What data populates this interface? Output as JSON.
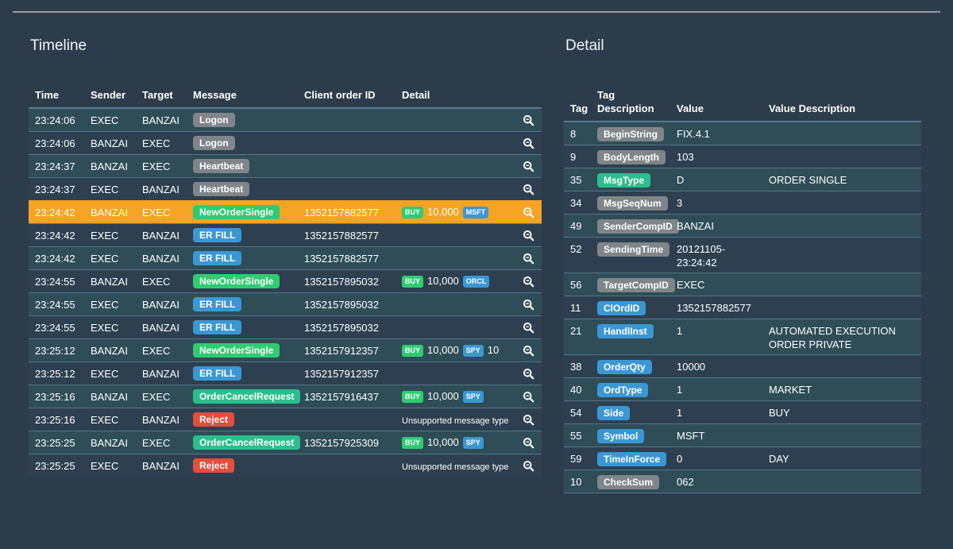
{
  "icons": {
    "row_detail": "magnifier-icon"
  },
  "colors": {
    "page_bg": "#2d3c4b",
    "row_dark": "#2e4050",
    "row_teal": "#2e4d57",
    "row_line": "#53748a",
    "head_line": "#5d8296",
    "top_rule": "#97999b",
    "highlight_orange": "#f5a423",
    "badge_gray": "#7f8588",
    "badge_green": "#2ecc71",
    "badge_teal": "#2bbe8d",
    "badge_blue": "#3b97d4",
    "badge_red": "#e74c3c",
    "text": "#ffffff"
  },
  "timeline": {
    "title": "Timeline",
    "headers": [
      "Time",
      "Sender",
      "Target",
      "Message",
      "Client order ID",
      "Detail"
    ],
    "rows": [
      {
        "time": "23:24:06",
        "sender": "EXEC",
        "target": "BANZAI",
        "message": {
          "label": "Logon",
          "color": "gray"
        },
        "client_order_id": ""
      },
      {
        "time": "23:24:06",
        "sender": "BANZAI",
        "target": "EXEC",
        "message": {
          "label": "Logon",
          "color": "gray"
        },
        "client_order_id": ""
      },
      {
        "time": "23:24:37",
        "sender": "BANZAI",
        "target": "EXEC",
        "message": {
          "label": "Heartbeat",
          "color": "gray"
        },
        "client_order_id": ""
      },
      {
        "time": "23:24:37",
        "sender": "EXEC",
        "target": "BANZAI",
        "message": {
          "label": "Heartbeat",
          "color": "gray"
        },
        "client_order_id": ""
      },
      {
        "time": "23:24:42",
        "sender": "BANZAI",
        "target": "EXEC",
        "message": {
          "label": "NewOrderSingle",
          "color": "green"
        },
        "client_order_id": "1352157882577",
        "order": {
          "side": "BUY",
          "side_color": "green",
          "quantity": "10,000",
          "symbol": "MSFT",
          "extra": ""
        },
        "highlighted": true
      },
      {
        "time": "23:24:42",
        "sender": "EXEC",
        "target": "BANZAI",
        "message": {
          "label": "ER FILL",
          "color": "blue"
        },
        "client_order_id": "1352157882577"
      },
      {
        "time": "23:24:42",
        "sender": "EXEC",
        "target": "BANZAI",
        "message": {
          "label": "ER FILL",
          "color": "blue"
        },
        "client_order_id": "1352157882577"
      },
      {
        "time": "23:24:55",
        "sender": "BANZAI",
        "target": "EXEC",
        "message": {
          "label": "NewOrderSingle",
          "color": "green"
        },
        "client_order_id": "1352157895032",
        "order": {
          "side": "BUY",
          "side_color": "green",
          "quantity": "10,000",
          "symbol": "ORCL",
          "extra": ""
        }
      },
      {
        "time": "23:24:55",
        "sender": "EXEC",
        "target": "BANZAI",
        "message": {
          "label": "ER FILL",
          "color": "blue"
        },
        "client_order_id": "1352157895032"
      },
      {
        "time": "23:24:55",
        "sender": "EXEC",
        "target": "BANZAI",
        "message": {
          "label": "ER FILL",
          "color": "blue"
        },
        "client_order_id": "1352157895032"
      },
      {
        "time": "23:25:12",
        "sender": "BANZAI",
        "target": "EXEC",
        "message": {
          "label": "NewOrderSingle",
          "color": "green"
        },
        "client_order_id": "1352157912357",
        "order": {
          "side": "BUY",
          "side_color": "green",
          "quantity": "10,000",
          "symbol": "SPY",
          "extra": "10"
        }
      },
      {
        "time": "23:25:12",
        "sender": "EXEC",
        "target": "BANZAI",
        "message": {
          "label": "ER FILL",
          "color": "blue"
        },
        "client_order_id": "1352157912357"
      },
      {
        "time": "23:25:16",
        "sender": "BANZAI",
        "target": "EXEC",
        "message": {
          "label": "OrderCancelRequest",
          "color": "teal"
        },
        "client_order_id": "1352157916437",
        "order": {
          "side": "BUY",
          "side_color": "green",
          "quantity": "10,000",
          "symbol": "SPY",
          "extra": ""
        }
      },
      {
        "time": "23:25:16",
        "sender": "EXEC",
        "target": "BANZAI",
        "message": {
          "label": "Reject",
          "color": "red"
        },
        "client_order_id": "",
        "note": "Unsupported message type"
      },
      {
        "time": "23:25:25",
        "sender": "BANZAI",
        "target": "EXEC",
        "message": {
          "label": "OrderCancelRequest",
          "color": "teal"
        },
        "client_order_id": "1352157925309",
        "order": {
          "side": "BUY",
          "side_color": "green",
          "quantity": "10,000",
          "symbol": "SPY",
          "extra": ""
        }
      },
      {
        "time": "23:25:25",
        "sender": "EXEC",
        "target": "BANZAI",
        "message": {
          "label": "Reject",
          "color": "red"
        },
        "client_order_id": "",
        "note": "Unsupported message type"
      }
    ]
  },
  "detail": {
    "title": "Detail",
    "headers": [
      "Tag",
      "Tag Description",
      "Value",
      "Value Description"
    ],
    "rows": [
      {
        "tag": "8",
        "tag_description": {
          "label": "BeginString",
          "color": "gray"
        },
        "value": "FIX.4.1",
        "value_description": ""
      },
      {
        "tag": "9",
        "tag_description": {
          "label": "BodyLength",
          "color": "gray"
        },
        "value": "103",
        "value_description": ""
      },
      {
        "tag": "35",
        "tag_description": {
          "label": "MsgType",
          "color": "teal"
        },
        "value": "D",
        "value_description": "ORDER SINGLE"
      },
      {
        "tag": "34",
        "tag_description": {
          "label": "MsgSeqNum",
          "color": "gray"
        },
        "value": "3",
        "value_description": ""
      },
      {
        "tag": "49",
        "tag_description": {
          "label": "SenderCompID",
          "color": "gray"
        },
        "value": "BANZAI",
        "value_description": ""
      },
      {
        "tag": "52",
        "tag_description": {
          "label": "SendingTime",
          "color": "gray"
        },
        "value": "20121105-23:24:42",
        "value_description": ""
      },
      {
        "tag": "56",
        "tag_description": {
          "label": "TargetCompID",
          "color": "gray"
        },
        "value": "EXEC",
        "value_description": ""
      },
      {
        "tag": "11",
        "tag_description": {
          "label": "ClOrdID",
          "color": "blue"
        },
        "value": "1352157882577",
        "value_description": ""
      },
      {
        "tag": "21",
        "tag_description": {
          "label": "HandlInst",
          "color": "blue"
        },
        "value": "1",
        "value_description": "AUTOMATED EXECUTION ORDER PRIVATE"
      },
      {
        "tag": "38",
        "tag_description": {
          "label": "OrderQty",
          "color": "blue"
        },
        "value": "10000",
        "value_description": ""
      },
      {
        "tag": "40",
        "tag_description": {
          "label": "OrdType",
          "color": "blue"
        },
        "value": "1",
        "value_description": "MARKET"
      },
      {
        "tag": "54",
        "tag_description": {
          "label": "Side",
          "color": "blue"
        },
        "value": "1",
        "value_description": "BUY"
      },
      {
        "tag": "55",
        "tag_description": {
          "label": "Symbol",
          "color": "blue"
        },
        "value": "MSFT",
        "value_description": ""
      },
      {
        "tag": "59",
        "tag_description": {
          "label": "TimeInForce",
          "color": "blue"
        },
        "value": "0",
        "value_description": "DAY"
      },
      {
        "tag": "10",
        "tag_description": {
          "label": "CheckSum",
          "color": "gray"
        },
        "value": "062",
        "value_description": ""
      }
    ]
  }
}
